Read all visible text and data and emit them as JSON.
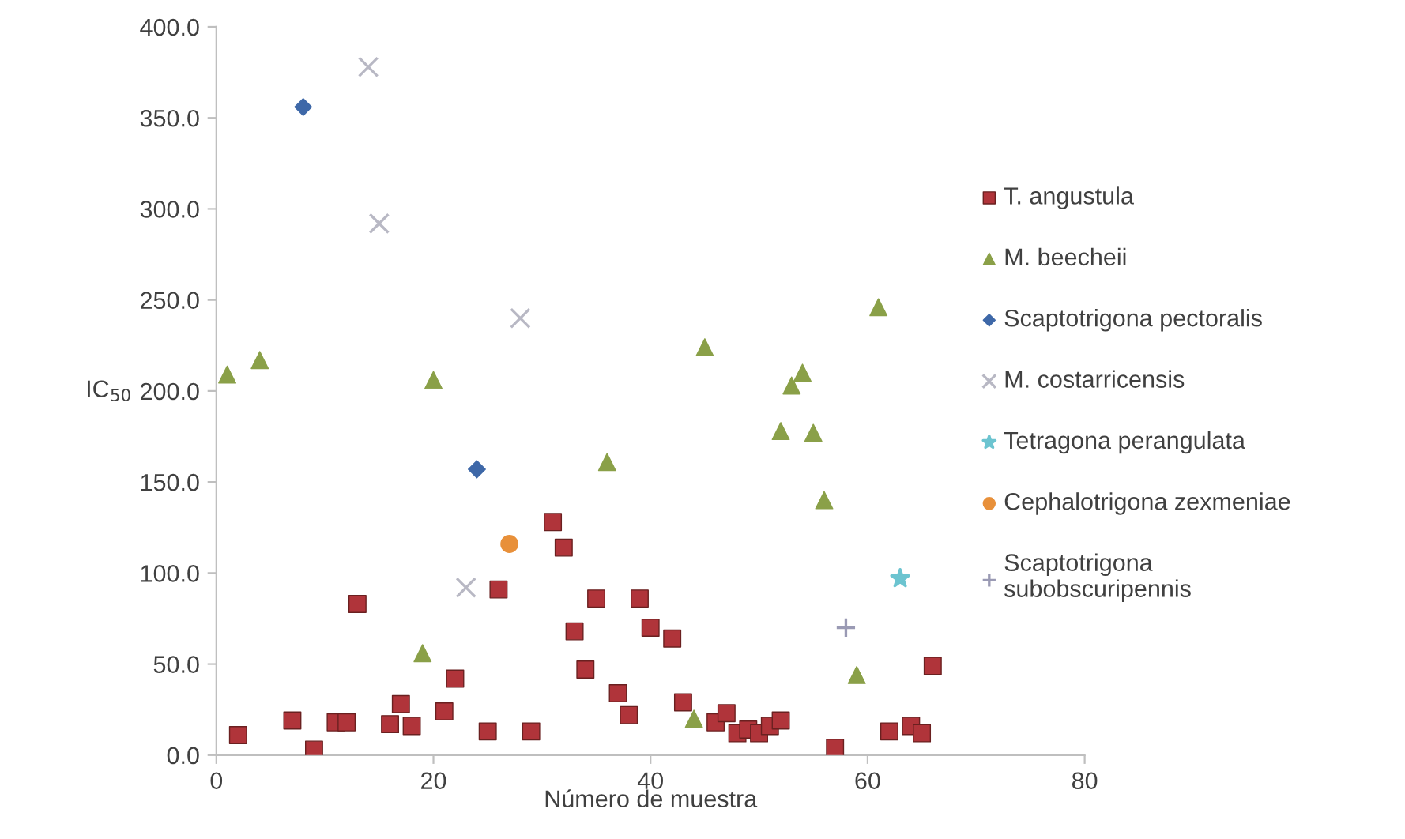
{
  "chart_data": {
    "type": "scatter",
    "xlabel": "Número de muestra",
    "ylabel": "IC$_{50}$",
    "xlim": [
      0,
      80
    ],
    "xticks": [
      0,
      20,
      40,
      60,
      80
    ],
    "ylim": [
      0,
      400
    ],
    "yticks": [
      {
        "value": 0,
        "label": "0.0"
      },
      {
        "value": 50,
        "label": "50.0"
      },
      {
        "value": 100,
        "label": "100.0"
      },
      {
        "value": 150,
        "label": "150.0"
      },
      {
        "value": 200,
        "label": "200.0"
      },
      {
        "value": 250,
        "label": "250.0"
      },
      {
        "value": 300,
        "label": "300.0"
      },
      {
        "value": 350,
        "label": "350.0"
      },
      {
        "value": 400,
        "label": "400.0"
      }
    ],
    "grid": false,
    "legend": "right",
    "series": [
      {
        "name": "T. angustula",
        "color": "#b0343a",
        "marker": "square",
        "x": [
          2,
          7,
          9,
          11,
          12,
          13,
          16,
          17,
          18,
          21,
          22,
          25,
          26,
          29,
          31,
          32,
          33,
          34,
          35,
          37,
          38,
          39,
          40,
          42,
          43,
          46,
          47,
          48,
          49,
          50,
          51,
          52,
          57,
          62,
          64,
          65,
          66
        ],
        "values": [
          11,
          19,
          3,
          18,
          18,
          83,
          17,
          28,
          16,
          24,
          42,
          13,
          91,
          13,
          128,
          114,
          68,
          47,
          86,
          34,
          22,
          86,
          70,
          64,
          29,
          18,
          23,
          12,
          14,
          12,
          16,
          19,
          4,
          13,
          16,
          12,
          49
        ]
      },
      {
        "name": "M. beecheii",
        "color": "#8aa048",
        "marker": "triangle",
        "x": [
          1,
          4,
          19,
          20,
          36,
          44,
          45,
          52,
          53,
          54,
          55,
          56,
          59,
          61
        ],
        "values": [
          209,
          217,
          56,
          206,
          161,
          20,
          224,
          178,
          203,
          210,
          177,
          140,
          44,
          246
        ]
      },
      {
        "name": "Scaptotrigona pectoralis",
        "color": "#3e68a8",
        "marker": "diamond",
        "x": [
          8,
          24
        ],
        "values": [
          356,
          157
        ]
      },
      {
        "name": "M. costarricensis",
        "color": "#b8b8c4",
        "marker": "cross",
        "x": [
          14,
          15,
          23,
          28
        ],
        "values": [
          378,
          292,
          92,
          240
        ]
      },
      {
        "name": "Tetragona perangulata",
        "color": "#6cc4d0",
        "marker": "star",
        "x": [
          63
        ],
        "values": [
          97
        ]
      },
      {
        "name": "Cephalotrigona zexmeniae",
        "color": "#e8903a",
        "marker": "circle",
        "x": [
          27
        ],
        "values": [
          116
        ]
      },
      {
        "name": "Scaptotrigona\nsubobscuripennis",
        "color": "#9a9ab4",
        "marker": "plus",
        "x": [
          58
        ],
        "values": [
          70
        ]
      }
    ]
  }
}
